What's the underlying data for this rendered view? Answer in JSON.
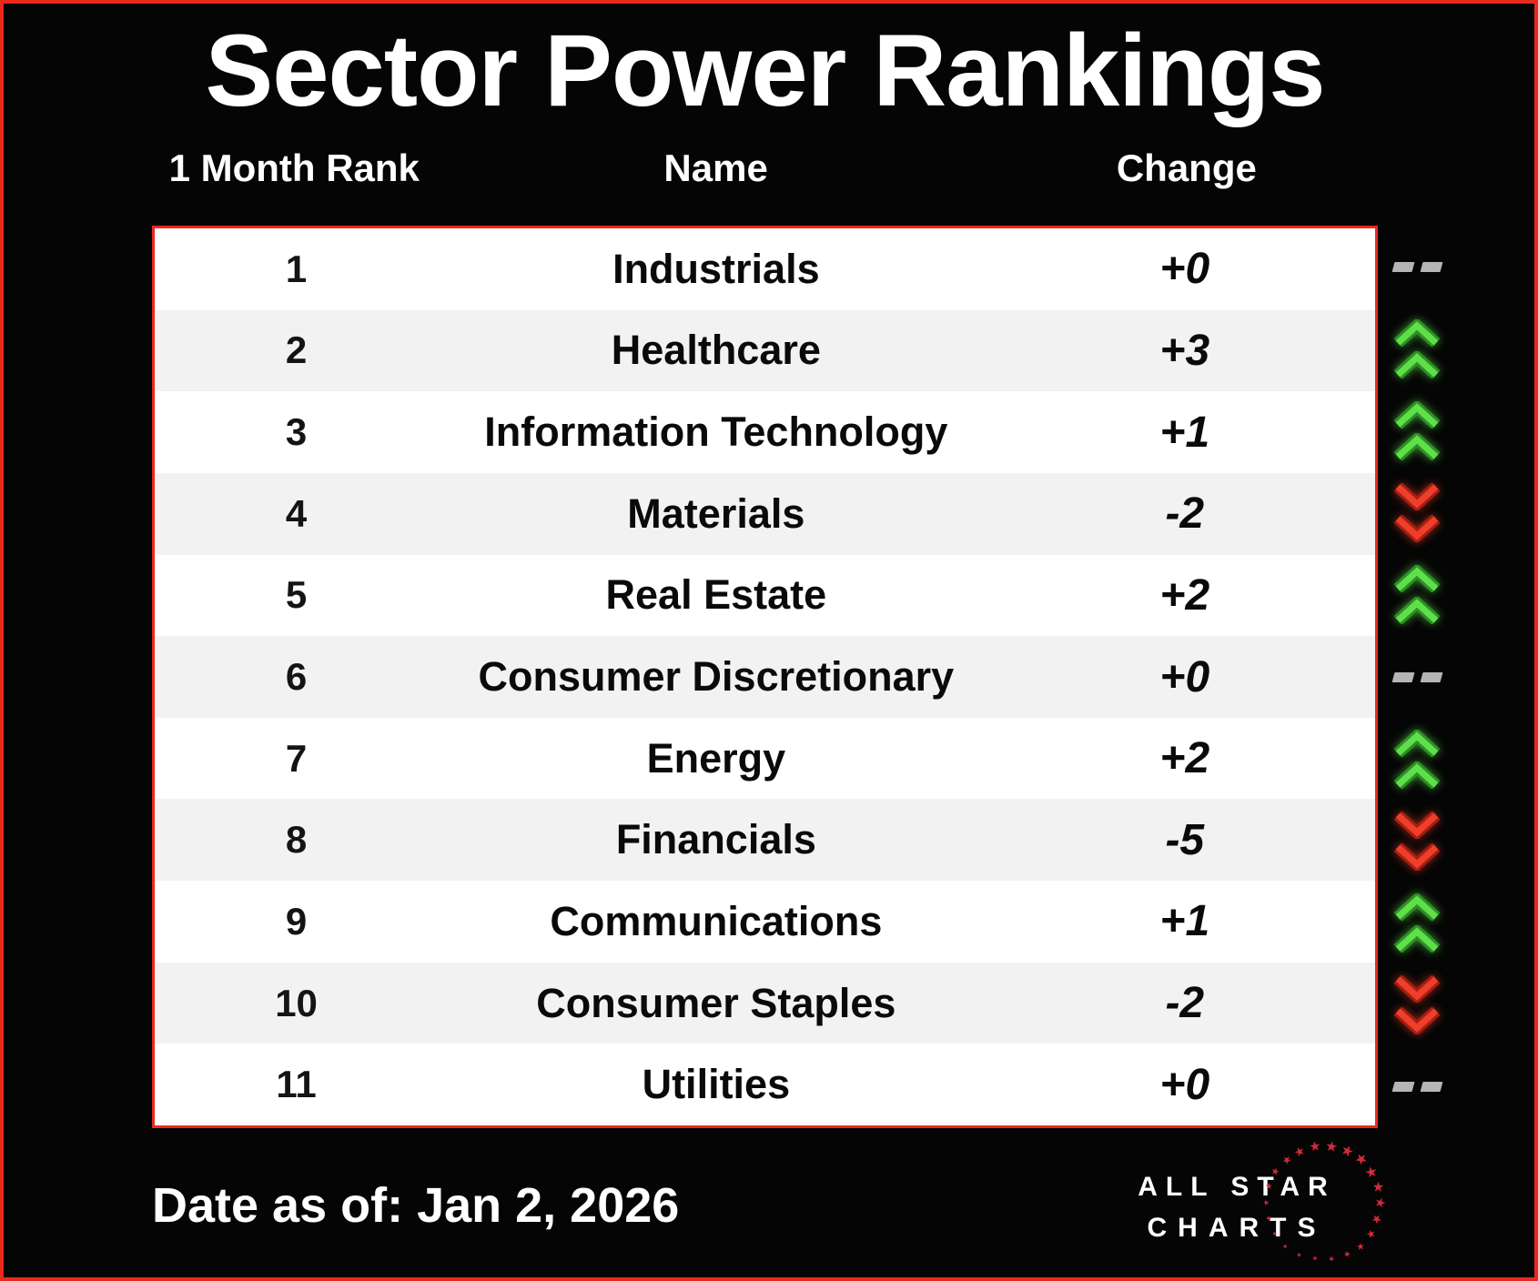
{
  "chart_data": {
    "type": "table",
    "title": "Sector Power Rankings",
    "columns": [
      "1 Month Rank",
      "Name",
      "Change"
    ],
    "rows": [
      {
        "rank": "1",
        "name": "Industrials",
        "change": "+0",
        "direction": "flat"
      },
      {
        "rank": "2",
        "name": "Healthcare",
        "change": "+3",
        "direction": "up"
      },
      {
        "rank": "3",
        "name": "Information Technology",
        "change": "+1",
        "direction": "up"
      },
      {
        "rank": "4",
        "name": "Materials",
        "change": "-2",
        "direction": "down"
      },
      {
        "rank": "5",
        "name": "Real Estate",
        "change": "+2",
        "direction": "up"
      },
      {
        "rank": "6",
        "name": "Consumer Discretionary",
        "change": "+0",
        "direction": "flat"
      },
      {
        "rank": "7",
        "name": "Energy",
        "change": "+2",
        "direction": "up"
      },
      {
        "rank": "8",
        "name": "Financials",
        "change": "-5",
        "direction": "down"
      },
      {
        "rank": "9",
        "name": "Communications",
        "change": "+1",
        "direction": "up"
      },
      {
        "rank": "10",
        "name": "Consumer Staples",
        "change": "-2",
        "direction": "down"
      },
      {
        "rank": "11",
        "name": "Utilities",
        "change": "+0",
        "direction": "flat"
      }
    ],
    "footer_date": "Date as of: Jan 2, 2026",
    "legend_position": "right",
    "grid": false
  },
  "logo": {
    "line1": "ALL STAR",
    "line2": "CHARTS"
  },
  "colors": {
    "accent_red": "#e8291c",
    "row_stripe": "#f2f2f2",
    "up_green_bright": "#5fe04a",
    "up_green_dark": "#2e8f26",
    "down_red_bright": "#ee3f2b",
    "down_red_dark": "#a81d10",
    "flat_gray": "#b5b5b5",
    "star_red": "#d22b3a",
    "background": "#050505",
    "table_background": "#ffffff"
  }
}
